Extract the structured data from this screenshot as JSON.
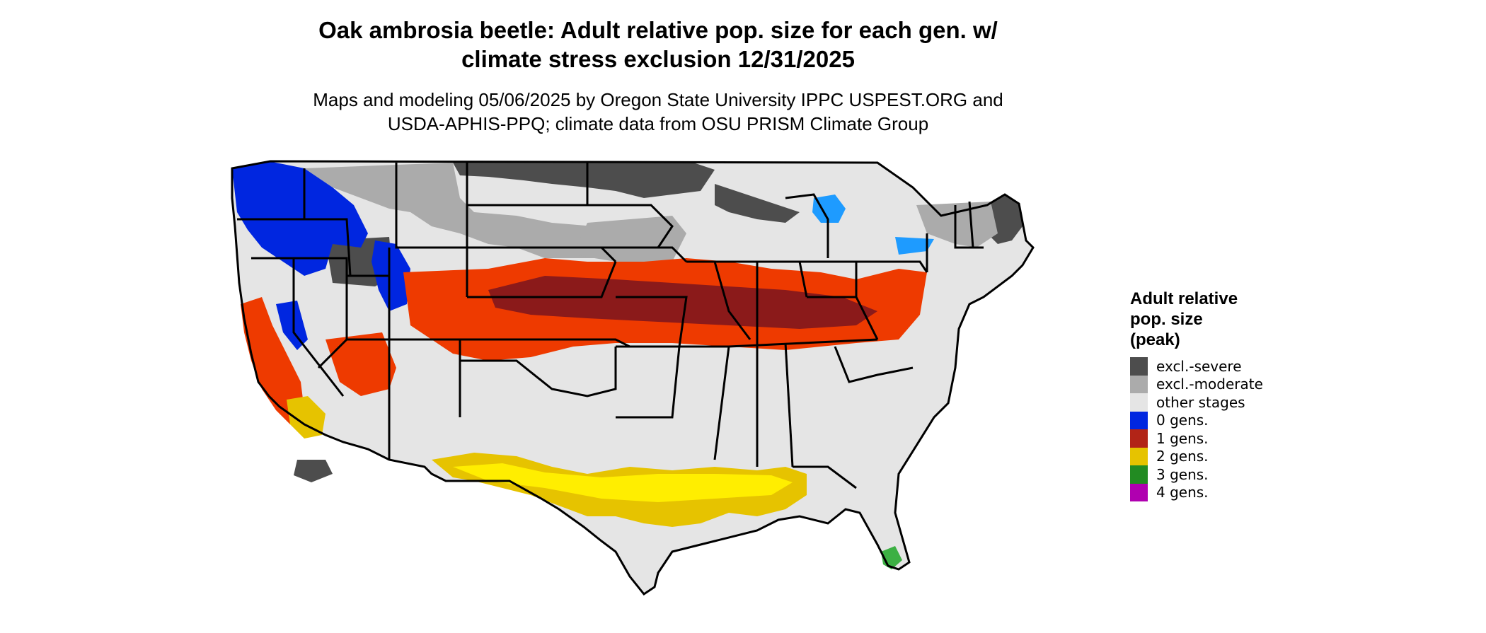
{
  "title_line1": "Oak ambrosia beetle: Adult relative pop. size for each gen. w/",
  "title_line2": "climate stress exclusion 12/31/2025",
  "subtitle_line1": "Maps and modeling 05/06/2025 by Oregon State University IPPC USPEST.ORG and",
  "subtitle_line2": "USDA-APHIS-PPQ; climate data from OSU PRISM Climate Group",
  "legend": {
    "title_line1": "Adult relative",
    "title_line2": "pop. size",
    "title_line3": "(peak)",
    "items": [
      {
        "label": "excl.-severe",
        "color": "#4d4d4d"
      },
      {
        "label": "excl.-moderate",
        "color": "#ababab"
      },
      {
        "label": "other stages",
        "color": "#e5e5e5"
      },
      {
        "label": "0 gens.",
        "color": "#0026e0"
      },
      {
        "label": "1 gens.",
        "color": "#b22417"
      },
      {
        "label": "2 gens.",
        "color": "#e6c300"
      },
      {
        "label": "3 gens.",
        "color": "#228b22"
      },
      {
        "label": "4 gens.",
        "color": "#b000b0"
      }
    ]
  },
  "map_colors": {
    "boundary": "#000000",
    "excl_severe": "#4d4d4d",
    "excl_moderate": "#ababab",
    "other_stages": "#e5e5e5",
    "zero_gens_deep": "#0026e0",
    "zero_gens_light": "#1e9bff",
    "one_gen_dark": "#8b1a1a",
    "one_gen_bright": "#ee3a00",
    "two_gens": "#e6c300",
    "two_gens_bright": "#ffee00",
    "three_gens": "#3cb043"
  }
}
